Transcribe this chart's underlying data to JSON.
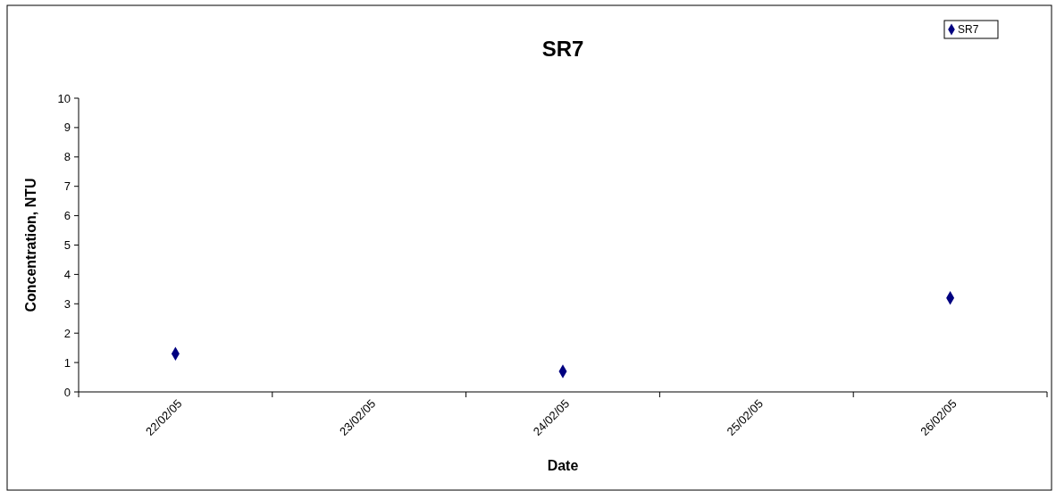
{
  "chart_data": {
    "type": "scatter",
    "title": "SR7",
    "xlabel": "Date",
    "ylabel": "Concentration, NTU",
    "categories": [
      "22/02/05",
      "23/02/05",
      "24/02/05",
      "25/02/05",
      "26/02/05"
    ],
    "series": [
      {
        "name": "SR7",
        "color": "#000080",
        "values": [
          1.3,
          null,
          0.7,
          null,
          3.2
        ]
      }
    ],
    "ylim": [
      0,
      10
    ],
    "yticks": [
      0,
      1,
      2,
      3,
      4,
      5,
      6,
      7,
      8,
      9,
      10
    ],
    "marker": "diamond",
    "legend": "top right",
    "grid": false
  }
}
